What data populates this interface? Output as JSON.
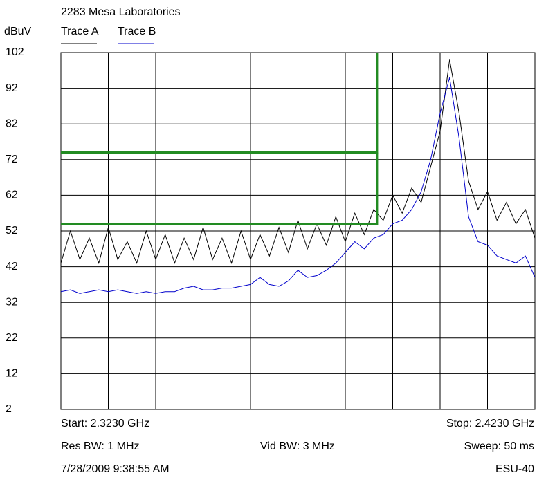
{
  "chart_data": {
    "type": "line",
    "title": "2283 Mesa Laboratories",
    "y_label": "dBuV",
    "xlim": [
      2.323,
      2.423
    ],
    "ylim": [
      2,
      102
    ],
    "yticks": [
      2,
      12,
      22,
      32,
      42,
      52,
      62,
      72,
      82,
      92,
      102
    ],
    "grid": true,
    "x_grid_divisions": 10,
    "x": [
      2.323,
      2.325,
      2.327,
      2.329,
      2.331,
      2.333,
      2.335,
      2.337,
      2.339,
      2.341,
      2.343,
      2.345,
      2.347,
      2.349,
      2.351,
      2.353,
      2.355,
      2.357,
      2.359,
      2.361,
      2.363,
      2.365,
      2.367,
      2.369,
      2.371,
      2.373,
      2.375,
      2.377,
      2.379,
      2.381,
      2.383,
      2.385,
      2.387,
      2.389,
      2.391,
      2.393,
      2.395,
      2.397,
      2.399,
      2.401,
      2.403,
      2.405,
      2.407,
      2.409,
      2.411,
      2.413,
      2.415,
      2.417,
      2.419,
      2.421,
      2.423
    ],
    "series": [
      {
        "name": "Trace A",
        "color": "#000000",
        "values": [
          43,
          52,
          44,
          50,
          43,
          53,
          44,
          49,
          43,
          52,
          44,
          51,
          43,
          50,
          44,
          53,
          44,
          50,
          43,
          52,
          44,
          51,
          45,
          53,
          46,
          55,
          47,
          54,
          48,
          56,
          49,
          57,
          51,
          58,
          55,
          62,
          57,
          64,
          60,
          70,
          80,
          100,
          85,
          66,
          58,
          63,
          55,
          60,
          54,
          58,
          50
        ]
      },
      {
        "name": "Trace B",
        "color": "#0000cc",
        "values": [
          35,
          35.5,
          34.5,
          35,
          35.5,
          35,
          35.5,
          35,
          34.5,
          35,
          34.5,
          35,
          35,
          36,
          36.5,
          35.5,
          35.5,
          36,
          36,
          36.5,
          37,
          39,
          37,
          36.5,
          38,
          41,
          39,
          39.5,
          41,
          43,
          46,
          49,
          47,
          50,
          51,
          54,
          55,
          58,
          63,
          72,
          85,
          95,
          78,
          56,
          49,
          48,
          45,
          44,
          43,
          45,
          39
        ]
      }
    ],
    "limit_lines": [
      {
        "color": "#228b22",
        "x": [
          2.323,
          2.3897,
          2.3897
        ],
        "values": [
          74,
          74,
          102
        ]
      },
      {
        "color": "#228b22",
        "x": [
          2.323,
          2.3897,
          2.3897
        ],
        "values": [
          54,
          54,
          74
        ]
      }
    ],
    "footer": {
      "start": "Start: 2.3230 GHz",
      "stop": "Stop: 2.4230 GHz",
      "res_bw": "Res BW: 1 MHz",
      "vid_bw": "Vid BW: 3 MHz",
      "sweep": "Sweep: 50 ms",
      "timestamp": "7/28/2009 9:38:55 AM",
      "model": "ESU-40"
    }
  }
}
